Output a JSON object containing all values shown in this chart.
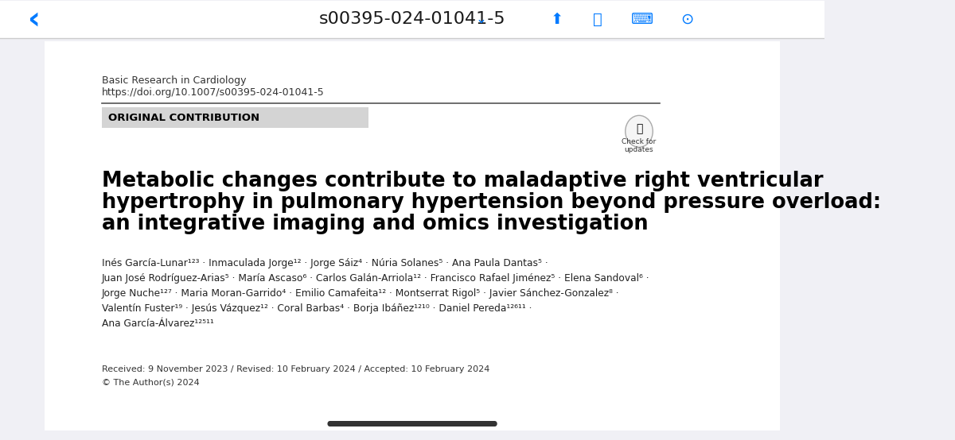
{
  "bg_color": "#f0f0f5",
  "page_bg": "#ffffff",
  "top_bar_bg": "#ffffff",
  "top_bar_text": "s00395-024-01041-5",
  "top_bar_color": "#1a1a1a",
  "journal_name": "Basic Research in Cardiology",
  "doi": "https://doi.org/10.1007/s00395-024-01041-5",
  "section_label": "ORIGINAL CONTRIBUTION",
  "section_bg": "#d4d4d4",
  "paper_title_line1": "Metabolic changes contribute to maladaptive right ventricular",
  "paper_title_line2": "hypertrophy in pulmonary hypertension beyond pressure overload:",
  "paper_title_line3": "an integrative imaging and omics investigation",
  "authors_line1": "Inés García-Lunar¹²³ · Inmaculada Jorge¹² · Jorge Sáiz⁴ · Núria Solanes⁵ · Ana Paula Dantas⁵ ·",
  "authors_line2": "Juan José Rodríguez-Arias⁵ · María Ascaso⁶ · Carlos Galán-Arriola¹² · Francisco Rafael Jiménez⁵ · Elena Sandoval⁶ ·",
  "authors_line3": "Jorge Nuche¹²⁷ · Maria Moran-Garrido⁴ · Emilio Camafeita¹² · Montserrat Rigol⁵ · Javier Sánchez-Gonzalez⁸ ·",
  "authors_line4": "Valentín Fuster¹⁹ · Jesús Vázquez¹² · Coral Barbas⁴ · Borja Ibáñez¹²¹⁰ · Daniel Pereda¹²⁶¹¹ ·",
  "authors_line5": "Ana García-Álvarez¹²⁵¹¹",
  "received": "Received: 9 November 2023 / Revised: 10 February 2024 / Accepted: 10 February 2024",
  "copyright": "© The Author(s) 2024",
  "text_color": "#1a1a1a",
  "small_text_color": "#333333",
  "title_color": "#000000",
  "author_color": "#222222"
}
